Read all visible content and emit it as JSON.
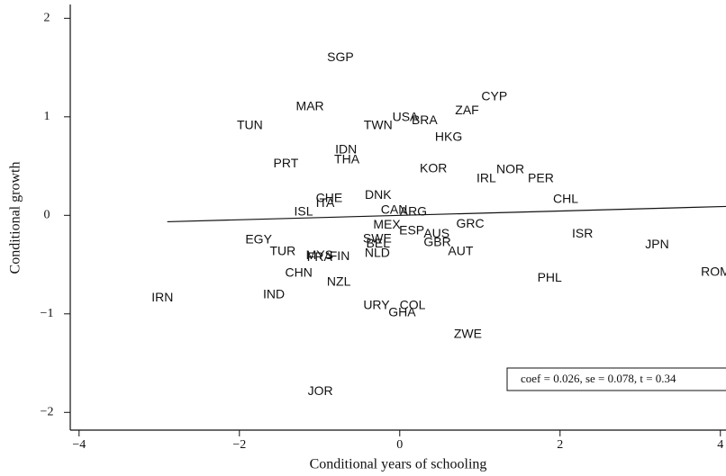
{
  "chart_data": {
    "type": "scatter",
    "x_label": "Conditional years of schooling",
    "y_label": "Conditional growth",
    "annotation": "coef = 0.026, se = 0.078, t = 0.34",
    "xlim": [
      -4.11,
      4.07
    ],
    "ylim": [
      -2.18,
      2.14
    ],
    "xticks": [
      {
        "value": -4,
        "label": "−4"
      },
      {
        "value": -2,
        "label": "−2"
      },
      0,
      2,
      4
    ],
    "yticks": [
      {
        "value": -2,
        "label": "−2"
      },
      {
        "value": -1,
        "label": "−1"
      },
      0,
      1,
      2
    ],
    "labels": [
      "SGP",
      "MAR",
      "CYP",
      "ZAF",
      "TUN",
      "USA",
      "TWN",
      "BRA",
      "HKG",
      "IDN",
      "THA",
      "PRT",
      "KOR",
      "NOR",
      "IRL",
      "PER",
      "CHL",
      "CHE",
      "ITA",
      "DNK",
      "ISL",
      "CAN",
      "ARG",
      "GRC",
      "MEX",
      "ESP",
      "AUS",
      "ISR",
      "EGY",
      "SWE",
      "BEL",
      "GBR",
      "JPN",
      "ROM",
      "TUR",
      "AUT",
      "MYS",
      "FRA",
      "FIN",
      "NLD",
      "CHN",
      "PHL",
      "NZL",
      "IND",
      "IRN",
      "URY",
      "COL",
      "GHA",
      "ZWE",
      "JOR"
    ],
    "x": [
      -0.74,
      -1.12,
      1.18,
      0.84,
      -1.87,
      0.07,
      -0.27,
      0.31,
      0.61,
      -0.67,
      -0.66,
      -1.42,
      0.42,
      1.38,
      1.08,
      1.76,
      2.07,
      -0.88,
      -0.93,
      -0.27,
      -1.2,
      -0.07,
      0.17,
      0.88,
      -0.16,
      0.15,
      0.46,
      2.28,
      -1.76,
      -0.28,
      -0.27,
      0.47,
      3.21,
      3.94,
      -1.46,
      0.76,
      -1.0,
      -1.0,
      -0.75,
      -0.28,
      -1.26,
      1.87,
      -0.76,
      -1.57,
      -2.96,
      -0.29,
      0.16,
      0.03,
      0.85,
      -0.99
    ],
    "y": [
      1.6,
      1.1,
      1.2,
      1.06,
      0.91,
      0.99,
      0.91,
      0.96,
      0.79,
      0.66,
      0.56,
      0.52,
      0.47,
      0.46,
      0.37,
      0.37,
      0.16,
      0.17,
      0.12,
      0.2,
      0.03,
      0.05,
      0.03,
      -0.09,
      -0.1,
      -0.16,
      -0.19,
      -0.19,
      -0.25,
      -0.24,
      -0.29,
      -0.28,
      -0.3,
      -0.58,
      -0.37,
      -0.37,
      -0.41,
      -0.43,
      -0.42,
      -0.39,
      -0.59,
      -0.64,
      -0.68,
      -0.81,
      -0.84,
      -0.92,
      -0.92,
      -0.99,
      -1.21,
      -1.79
    ],
    "fit_line": {
      "x": [
        -2.9,
        4.07
      ],
      "y": [
        -0.065,
        0.09
      ]
    }
  }
}
